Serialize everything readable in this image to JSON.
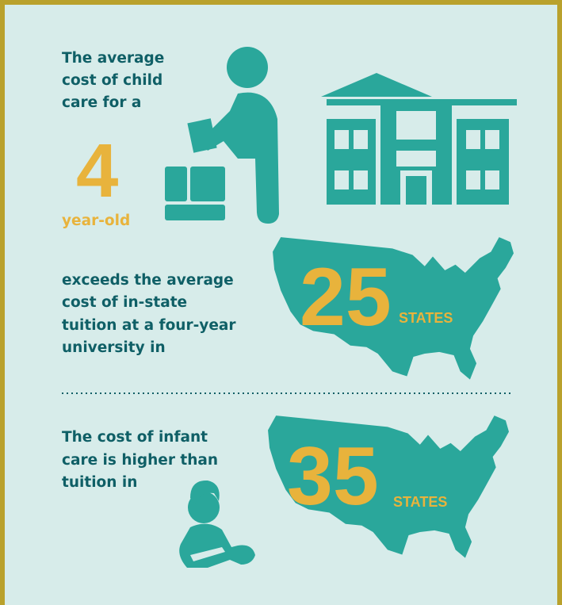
{
  "top": {
    "lines": [
      "The average",
      "cost of child",
      "care for a"
    ],
    "number": 4,
    "caption": "year-old"
  },
  "middle": {
    "lines": [
      "exceeds the average",
      "cost of in-state",
      "tuition at a four-year",
      "university in"
    ],
    "number": 25,
    "unit": "STATES"
  },
  "bottom": {
    "lines": [
      "The cost of infant",
      "care is higher than",
      "tuition in"
    ],
    "number": 35,
    "unit": "STATES"
  }
}
